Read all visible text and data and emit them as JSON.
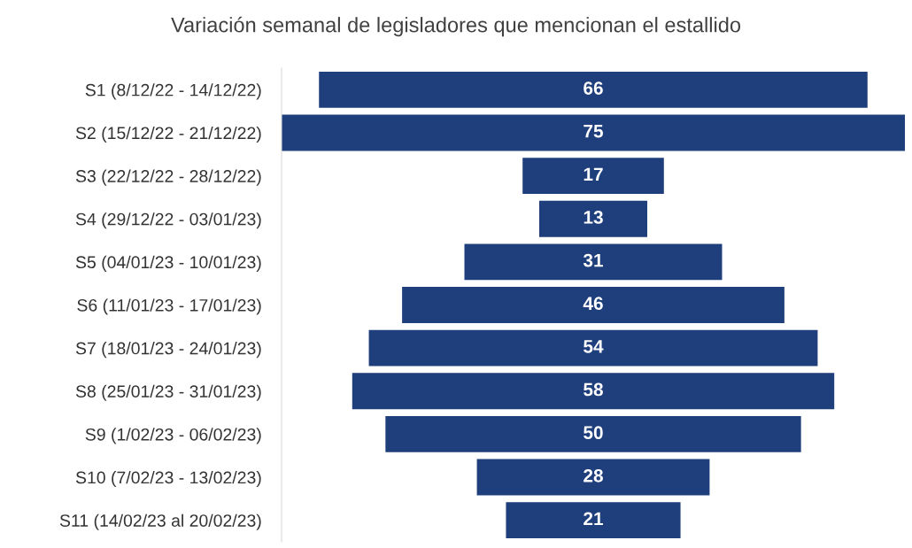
{
  "chart_data": {
    "type": "other",
    "title": "Variación semanal de legisladores que mencionan el estallido",
    "categories": [
      "S1 (8/12/22 - 14/12/22)",
      "S2 (15/12/22 - 21/12/22)",
      "S3 (22/12/22 - 28/12/22)",
      "S4 (29/12/22 - 03/01/23)",
      "S5 (04/01/23 - 10/01/23)",
      "S6 (11/01/23 - 17/01/23)",
      "S7 (18/01/23 - 24/01/23)",
      "S8 (25/01/23 - 31/01/23)",
      "S9 (1/02/23 - 06/02/23)",
      "S10 (7/02/23 - 13/02/23)",
      "S11 (14/02/23 al 20/02/23)"
    ],
    "values": [
      66,
      75,
      17,
      13,
      31,
      46,
      54,
      58,
      50,
      28,
      21
    ],
    "color": "#1f3e7c",
    "data_labels": true
  }
}
